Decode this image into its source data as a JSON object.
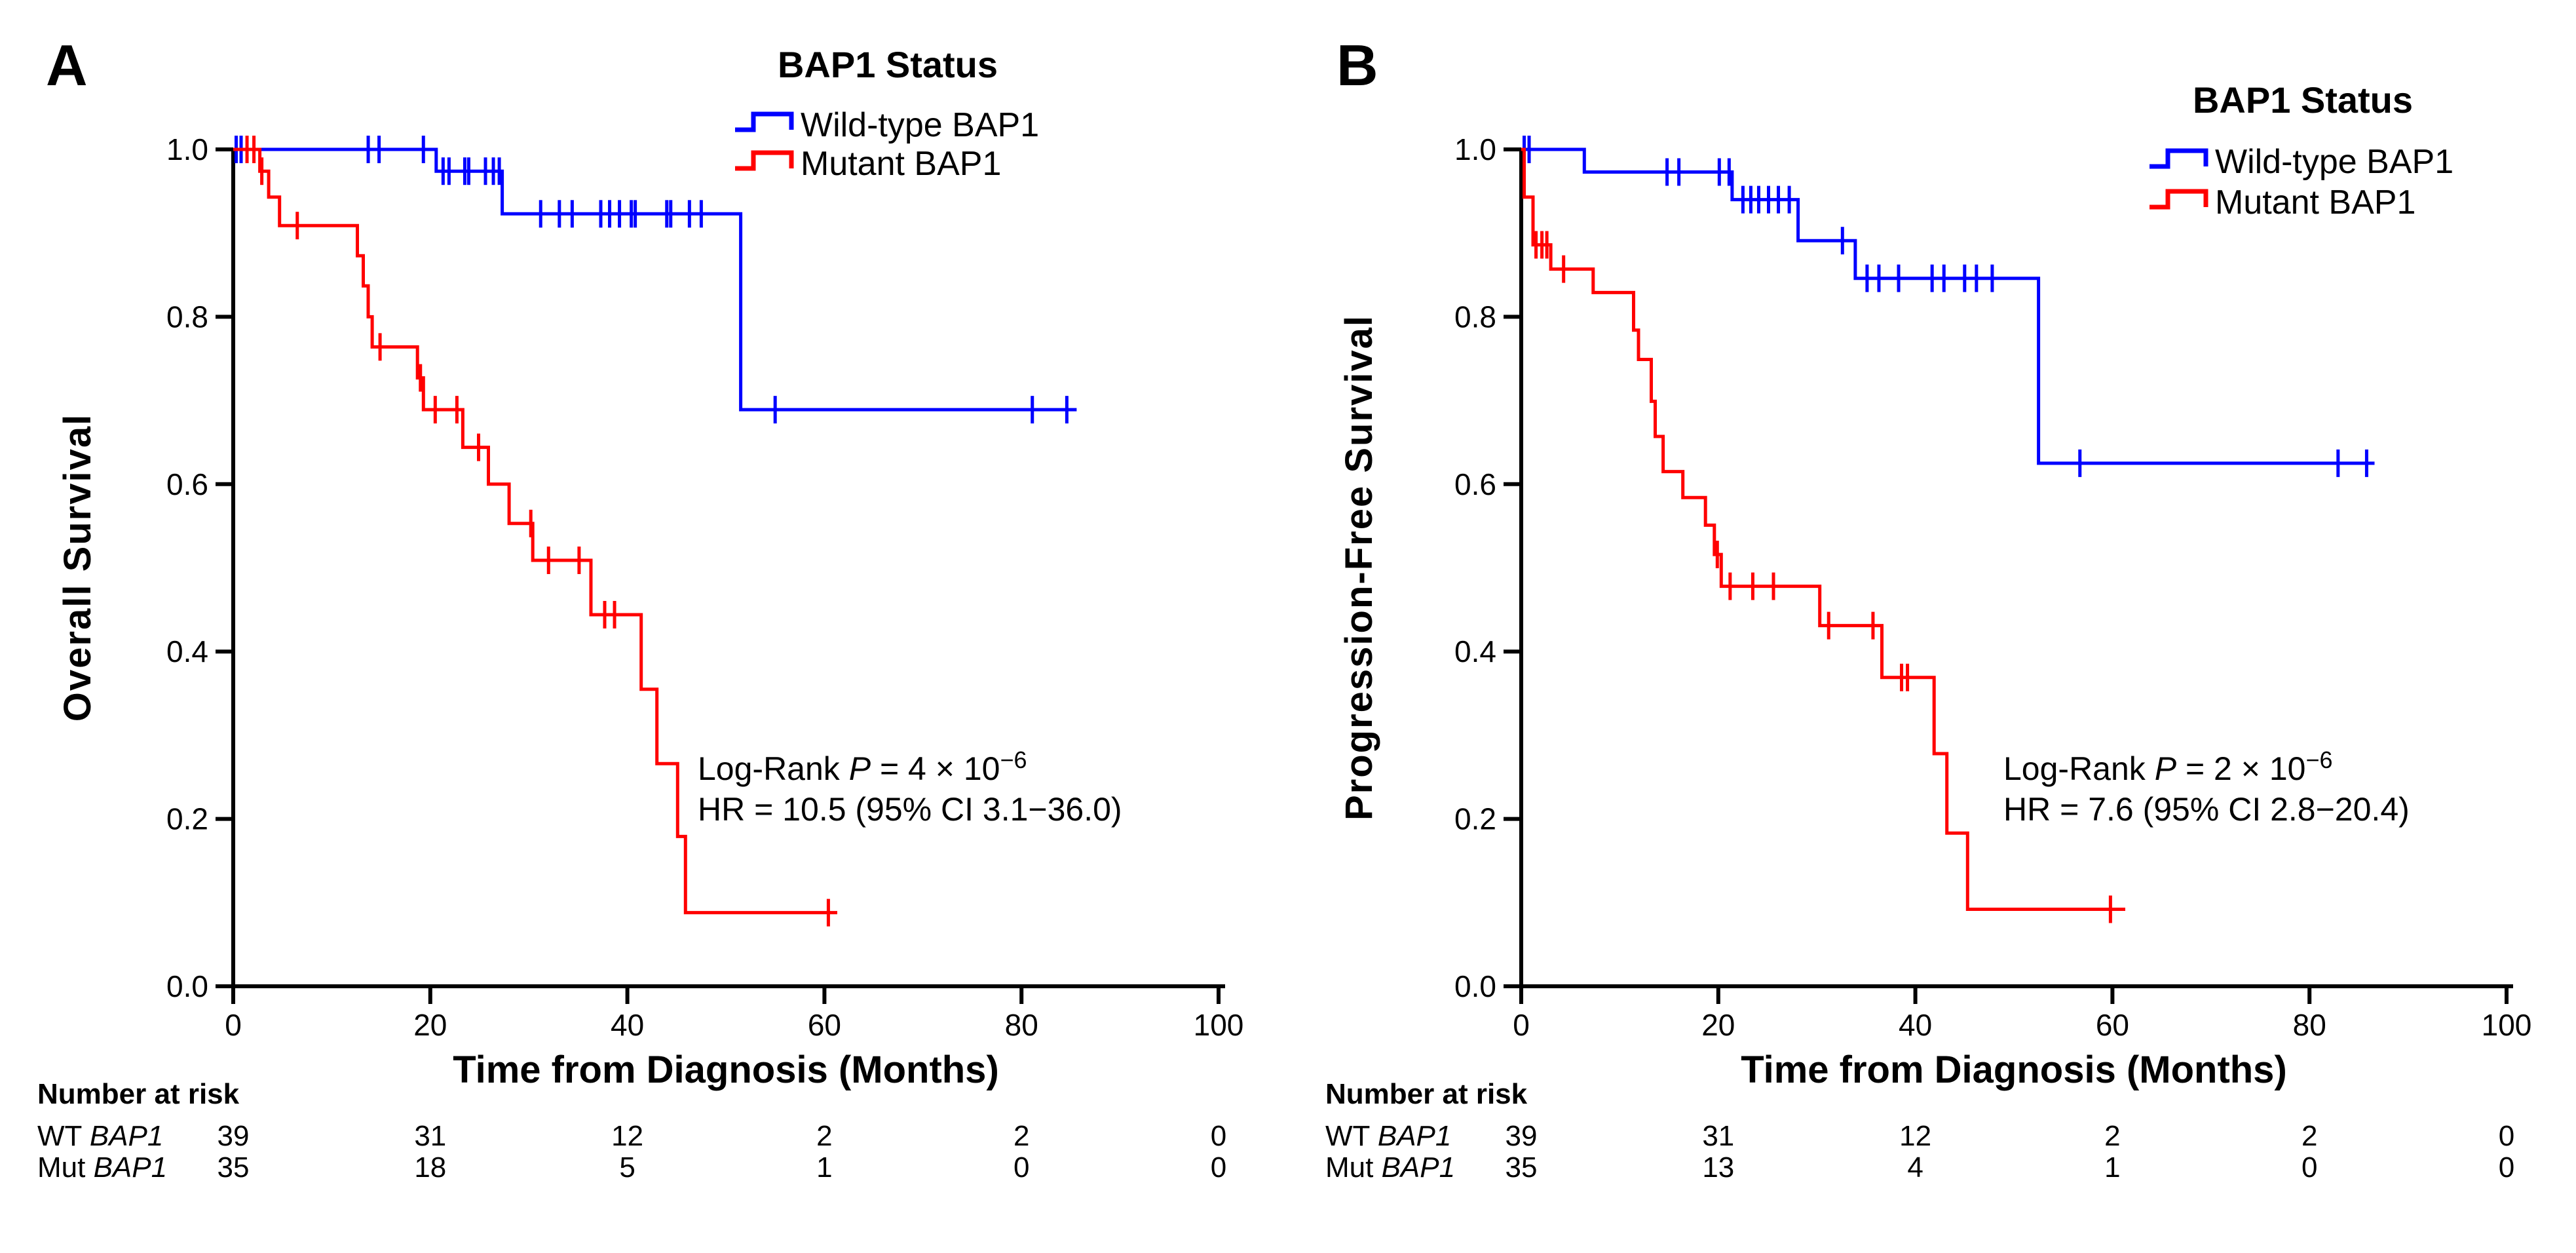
{
  "figure_background": "#ffffff",
  "axis_color": "#000000",
  "chart_data": [
    {
      "type": "line",
      "subtype": "kaplan-meier-step",
      "panel": "A",
      "ylabel": "Overall Survival",
      "xlabel": "Time from Diagnosis (Months)",
      "xlim": [
        0,
        100
      ],
      "ylim": [
        0.0,
        1.0
      ],
      "x_ticks": [
        0,
        20,
        40,
        60,
        80,
        100
      ],
      "y_ticks": [
        "1.0",
        "0.8",
        "0.6",
        "0.4",
        "0.2",
        "0.0"
      ],
      "grid": false,
      "legend_position": "top-right-inside",
      "legend_title": "BAP1 Status",
      "series": [
        {
          "name": "Wild-type BAP1",
          "color": "#0000ff",
          "steps": [
            [
              20.6,
              0.974
            ],
            [
              27.3,
              0.923
            ],
            [
              51.5,
              0.689
            ]
          ],
          "censors": [
            [
              0.3,
              1
            ],
            [
              0.8,
              1
            ],
            [
              13.7,
              1
            ],
            [
              14.8,
              1
            ],
            [
              19.3,
              1
            ],
            [
              21.3,
              0.974
            ],
            [
              21.9,
              0.974
            ],
            [
              23.5,
              0.974
            ],
            [
              23.9,
              0.974
            ],
            [
              25.6,
              0.974
            ],
            [
              26.4,
              0.974
            ],
            [
              27.0,
              0.974
            ],
            [
              31.2,
              0.923
            ],
            [
              33.1,
              0.923
            ],
            [
              34.4,
              0.923
            ],
            [
              37.3,
              0.923
            ],
            [
              38.2,
              0.923
            ],
            [
              39.2,
              0.923
            ],
            [
              40.4,
              0.923
            ],
            [
              40.8,
              0.923
            ],
            [
              44.0,
              0.923
            ],
            [
              44.4,
              0.923
            ],
            [
              46.3,
              0.923
            ],
            [
              47.5,
              0.923
            ],
            [
              55.0,
              0.689
            ],
            [
              81.1,
              0.689
            ],
            [
              84.6,
              0.689
            ]
          ],
          "end_time": 85.6
        },
        {
          "name": "Mutant BAP1",
          "color": "#ff0000",
          "steps": [
            [
              2.7,
              0.974
            ],
            [
              3.6,
              0.943
            ],
            [
              4.7,
              0.909
            ],
            [
              12.6,
              0.873
            ],
            [
              13.2,
              0.837
            ],
            [
              13.7,
              0.8
            ],
            [
              14.1,
              0.764
            ],
            [
              18.7,
              0.727
            ],
            [
              19.3,
              0.689
            ],
            [
              23.3,
              0.644
            ],
            [
              25.9,
              0.6
            ],
            [
              28.0,
              0.553
            ],
            [
              30.4,
              0.509
            ],
            [
              36.3,
              0.444
            ],
            [
              41.4,
              0.355
            ],
            [
              43.0,
              0.266
            ],
            [
              45.1,
              0.179
            ],
            [
              45.9,
              0.088
            ]
          ],
          "censors": [
            [
              1.4,
              1
            ],
            [
              2.1,
              1
            ],
            [
              2.9,
              0.974
            ],
            [
              6.5,
              0.909
            ],
            [
              14.9,
              0.764
            ],
            [
              19.0,
              0.727
            ],
            [
              20.5,
              0.689
            ],
            [
              22.7,
              0.689
            ],
            [
              24.9,
              0.644
            ],
            [
              30.2,
              0.553
            ],
            [
              32.0,
              0.509
            ],
            [
              35.1,
              0.509
            ],
            [
              37.7,
              0.444
            ],
            [
              38.7,
              0.444
            ],
            [
              60.4,
              0.088
            ]
          ],
          "end_time": 61.3
        }
      ],
      "annotation": {
        "line1_prefix": "Log-Rank ",
        "line1_italic": "P",
        "line1_mid": " = 4 × 10",
        "line1_sup": "−6",
        "line2": "HR = 10.5 (95% CI 3.1−36.0)"
      },
      "at_risk": {
        "header": "Number at risk",
        "columns": [
          0,
          20,
          40,
          60,
          80,
          100
        ],
        "rows": [
          {
            "label_prefix": "WT ",
            "label_gene": "BAP1",
            "counts": [
              "39",
              "31",
              "12",
              "2",
              "2",
              "0"
            ]
          },
          {
            "label_prefix": "Mut ",
            "label_gene": "BAP1",
            "counts": [
              "35",
              "18",
              "5",
              "1",
              "0",
              "0"
            ]
          }
        ]
      }
    },
    {
      "type": "line",
      "subtype": "kaplan-meier-step",
      "panel": "B",
      "ylabel": "Progression-Free Survival",
      "xlabel": "Time from Diagnosis (Months)",
      "xlim": [
        0,
        100
      ],
      "ylim": [
        0.0,
        1.0
      ],
      "x_ticks": [
        0,
        20,
        40,
        60,
        80,
        100
      ],
      "y_ticks": [
        "1.0",
        "0.8",
        "0.6",
        "0.4",
        "0.2",
        "0.0"
      ],
      "grid": false,
      "legend_position": "top-right-inside",
      "legend_title": "BAP1 Status",
      "series": [
        {
          "name": "Wild-type BAP1",
          "color": "#0000ff",
          "steps": [
            [
              6.4,
              0.973
            ],
            [
              21.4,
              0.94
            ],
            [
              28.1,
              0.891
            ],
            [
              33.9,
              0.846
            ],
            [
              52.5,
              0.625
            ]
          ],
          "censors": [
            [
              0.3,
              1
            ],
            [
              0.8,
              1
            ],
            [
              14.8,
              0.973
            ],
            [
              16.0,
              0.973
            ],
            [
              20.1,
              0.973
            ],
            [
              21.1,
              0.973
            ],
            [
              22.5,
              0.94
            ],
            [
              23.3,
              0.94
            ],
            [
              24.1,
              0.94
            ],
            [
              25.1,
              0.94
            ],
            [
              26.1,
              0.94
            ],
            [
              27.2,
              0.94
            ],
            [
              32.6,
              0.891
            ],
            [
              35.1,
              0.846
            ],
            [
              36.3,
              0.846
            ],
            [
              38.3,
              0.846
            ],
            [
              41.7,
              0.846
            ],
            [
              42.9,
              0.846
            ],
            [
              45.0,
              0.846
            ],
            [
              46.2,
              0.846
            ],
            [
              47.8,
              0.846
            ],
            [
              56.7,
              0.625
            ],
            [
              82.9,
              0.625
            ],
            [
              85.8,
              0.625
            ]
          ],
          "end_time": 86.6
        },
        {
          "name": "Mutant BAP1",
          "color": "#ff0000",
          "steps": [
            [
              0.3,
              0.943
            ],
            [
              1.2,
              0.886
            ],
            [
              3.0,
              0.857
            ],
            [
              7.3,
              0.829
            ],
            [
              11.4,
              0.784
            ],
            [
              11.9,
              0.749
            ],
            [
              13.2,
              0.699
            ],
            [
              13.6,
              0.657
            ],
            [
              14.4,
              0.615
            ],
            [
              16.4,
              0.584
            ],
            [
              18.7,
              0.551
            ],
            [
              19.6,
              0.516
            ],
            [
              20.3,
              0.478
            ],
            [
              30.3,
              0.431
            ],
            [
              36.6,
              0.369
            ],
            [
              41.9,
              0.278
            ],
            [
              43.2,
              0.183
            ],
            [
              45.3,
              0.092
            ]
          ],
          "censors": [
            [
              1.5,
              0.886
            ],
            [
              2.1,
              0.886
            ],
            [
              2.6,
              0.886
            ],
            [
              4.3,
              0.857
            ],
            [
              19.9,
              0.516
            ],
            [
              21.2,
              0.478
            ],
            [
              23.5,
              0.478
            ],
            [
              25.6,
              0.478
            ],
            [
              31.2,
              0.431
            ],
            [
              35.7,
              0.431
            ],
            [
              38.6,
              0.369
            ],
            [
              39.2,
              0.369
            ],
            [
              59.8,
              0.092
            ]
          ],
          "end_time": 61.3
        }
      ],
      "annotation": {
        "line1_prefix": "Log-Rank ",
        "line1_italic": "P",
        "line1_mid": " = 2 × 10",
        "line1_sup": "−6",
        "line2": "HR = 7.6 (95% CI 2.8−20.4)"
      },
      "at_risk": {
        "header": "Number at risk",
        "columns": [
          0,
          20,
          40,
          60,
          80,
          100
        ],
        "rows": [
          {
            "label_prefix": "WT ",
            "label_gene": "BAP1",
            "counts": [
              "39",
              "31",
              "12",
              "2",
              "2",
              "0"
            ]
          },
          {
            "label_prefix": "Mut ",
            "label_gene": "BAP1",
            "counts": [
              "35",
              "13",
              "4",
              "1",
              "0",
              "0"
            ]
          }
        ]
      }
    }
  ]
}
